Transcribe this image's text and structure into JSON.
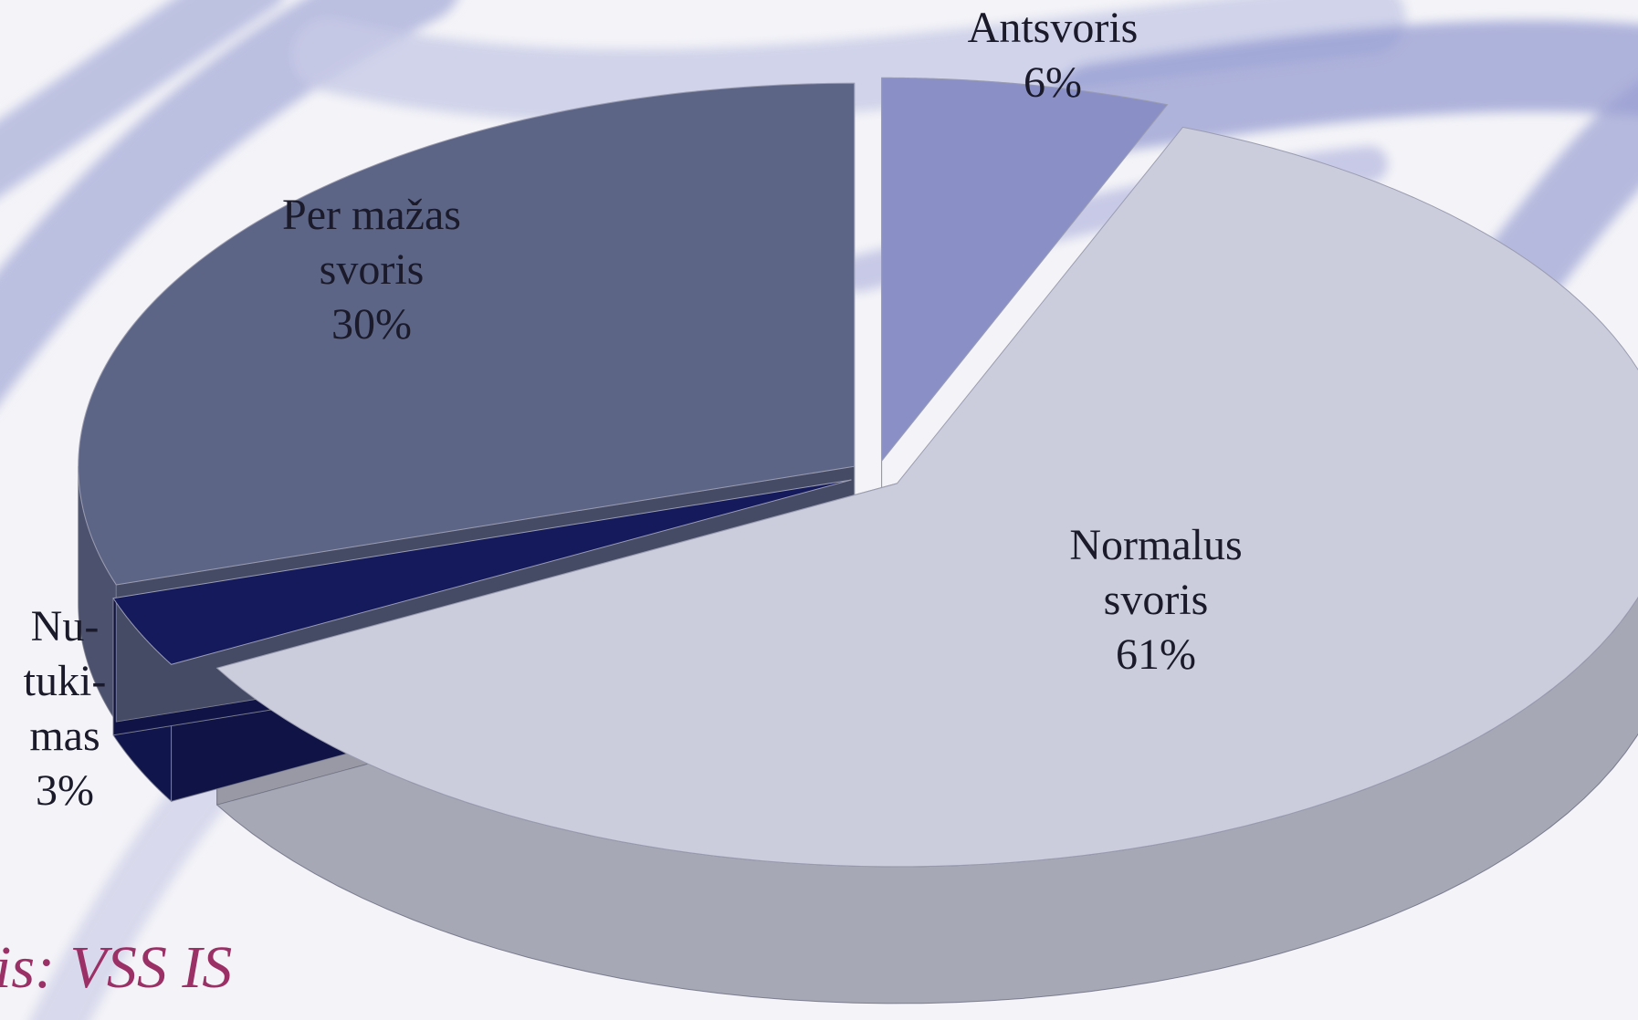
{
  "chart_data": {
    "type": "pie",
    "categories": [
      [
        "Antsvoris"
      ],
      [
        "Normalus",
        "svoris"
      ],
      [
        "Nu-",
        "tuki-",
        "mas"
      ],
      [
        "Per mažas",
        "svoris"
      ]
    ],
    "values": [
      6,
      61,
      3,
      30
    ],
    "value_labels": [
      "6%",
      "61%",
      "3%",
      "30%"
    ],
    "colors": [
      "#8a90c6",
      "#cbcddd",
      "#141a5c",
      "#5d6587"
    ],
    "source": "is: VSS IS"
  }
}
